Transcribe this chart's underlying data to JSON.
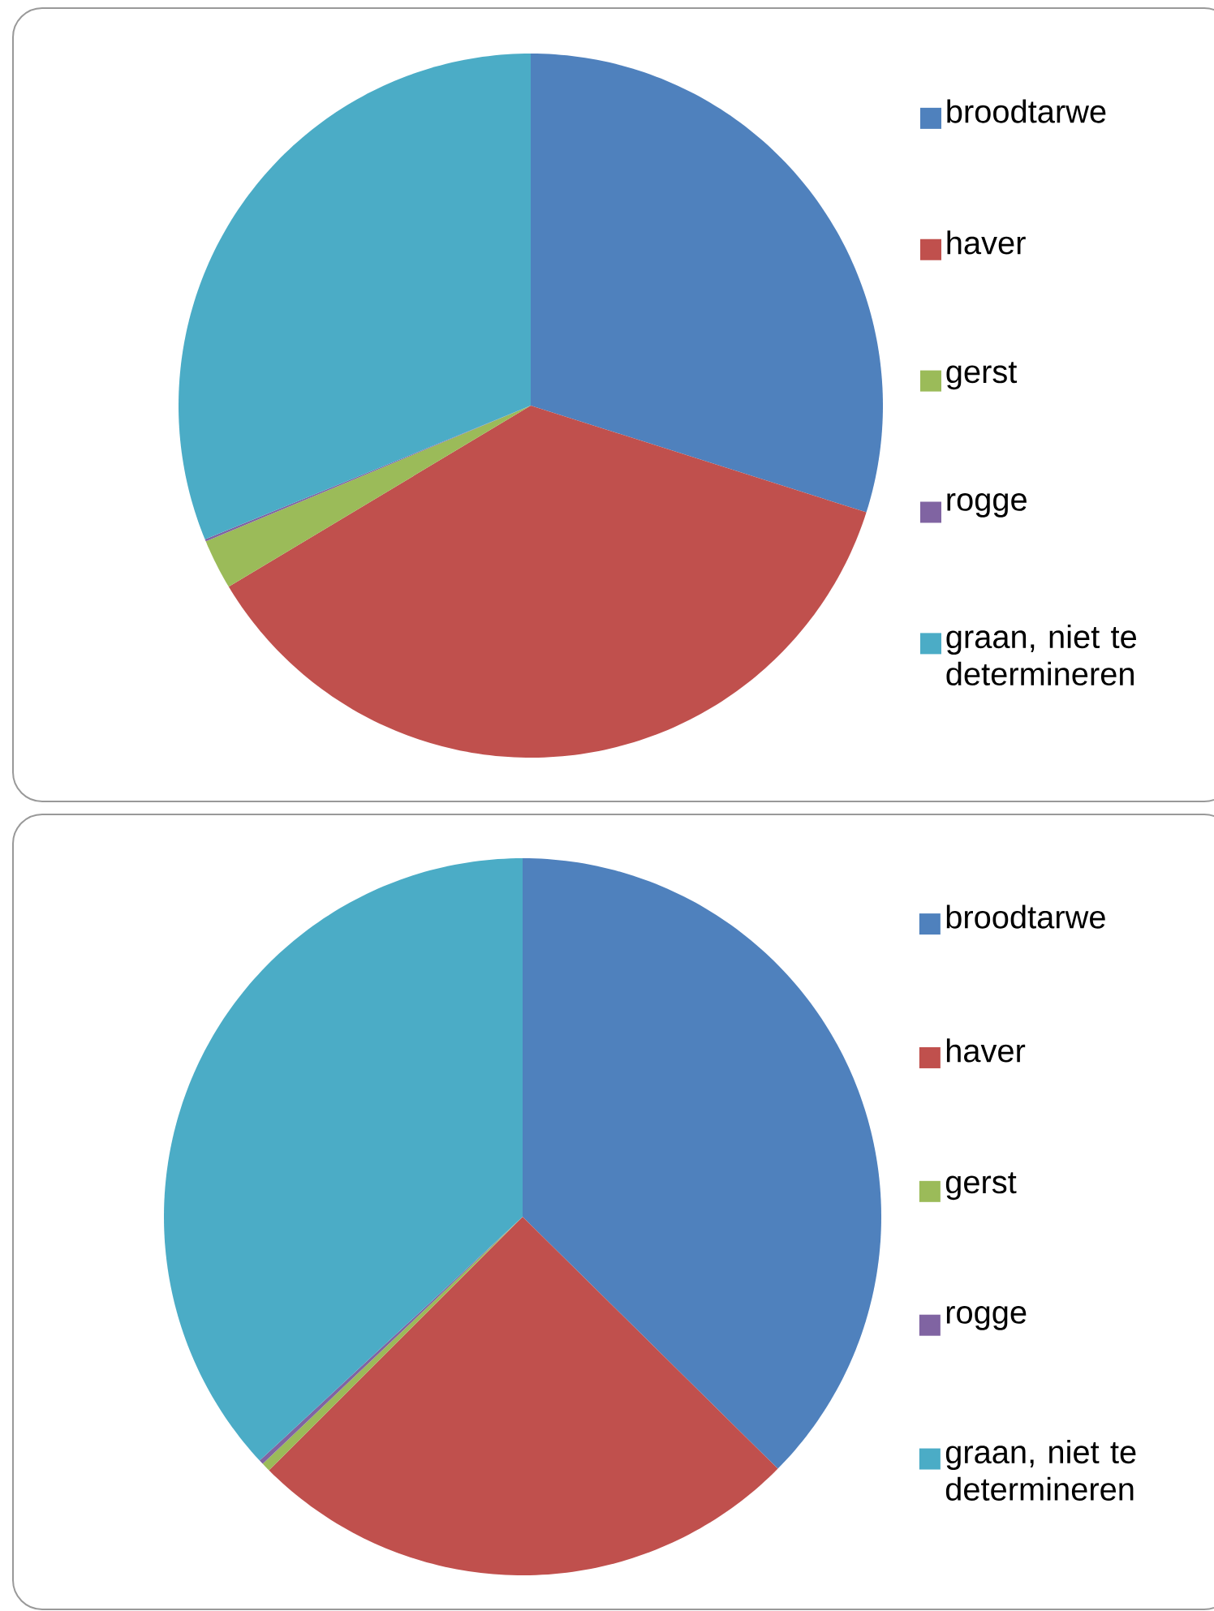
{
  "chart_data": [
    {
      "type": "pie",
      "categories": [
        "broodtarwe",
        "haver",
        "gerst",
        "rogge",
        "graan, niet te determineren"
      ],
      "values": [
        29.9,
        36.5,
        2.3,
        0.1,
        31.2
      ],
      "colors": [
        "#4f81bd",
        "#c0504d",
        "#9bbb59",
        "#8064a2",
        "#4bacc6"
      ],
      "legend": "right"
    },
    {
      "type": "pie",
      "categories": [
        "broodtarwe",
        "haver",
        "gerst",
        "rogge",
        "graan, niet te determineren"
      ],
      "values": [
        37.4,
        25.1,
        0.4,
        0.2,
        36.9
      ],
      "colors": [
        "#4f81bd",
        "#c0504d",
        "#9bbb59",
        "#8064a2",
        "#4bacc6"
      ],
      "legend": "right"
    }
  ]
}
